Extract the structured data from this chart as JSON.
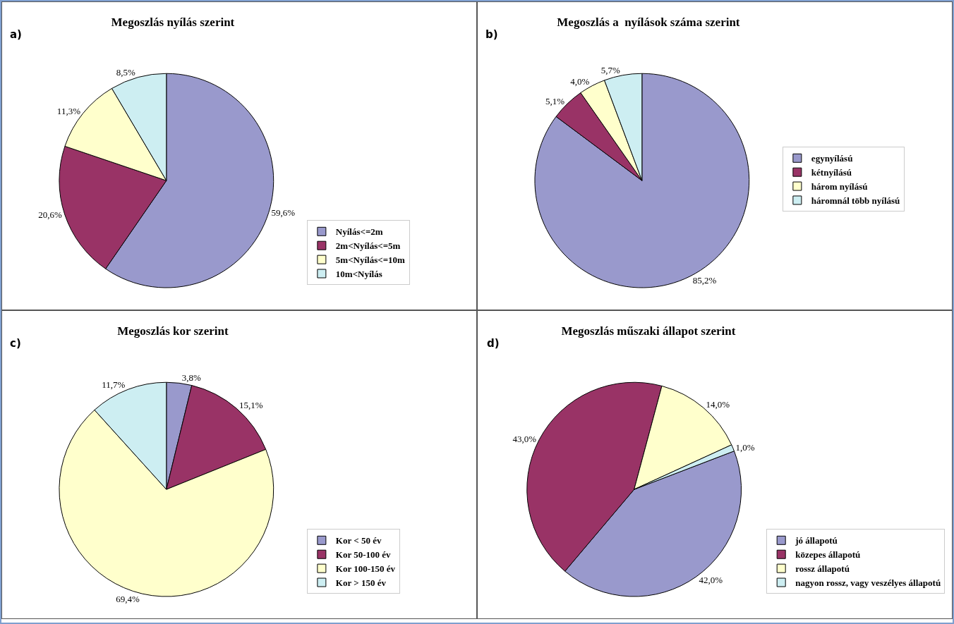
{
  "chart_data": [
    {
      "type": "pie",
      "title": "Megoszlás nyílás szerint",
      "annotations": [
        "a)"
      ],
      "categories": [
        "Nyílás<=2m",
        "2m<Nyílás<=5m",
        "5m<Nyílás<=10m",
        "10m<Nyílás"
      ],
      "values": [
        59.6,
        20.6,
        11.3,
        8.5
      ],
      "value_labels": [
        "59,6%",
        "20,6%",
        "11,3%",
        "8,5%"
      ],
      "colors": [
        "#9999cc",
        "#993366",
        "#ffffcc",
        "#cdeef2"
      ],
      "legend": "bottom right"
    },
    {
      "type": "pie",
      "title": "Megoszlás a  nyílások száma szerint",
      "annotations": [
        "b)"
      ],
      "categories": [
        "egynyílású",
        "kétnyílású",
        "három nyílású",
        "háromnál több nyílású"
      ],
      "values": [
        85.2,
        5.1,
        4.0,
        5.7
      ],
      "value_labels": [
        "85,2%",
        "5,1%",
        "4,0%",
        "5,7%"
      ],
      "colors": [
        "#9999cc",
        "#993366",
        "#ffffcc",
        "#cdeef2"
      ],
      "legend": "right"
    },
    {
      "type": "pie",
      "title": "Megoszlás kor szerint",
      "annotations": [
        "c)"
      ],
      "categories": [
        "Kor < 50 év",
        "Kor 50-100 év",
        "Kor 100-150 év",
        "Kor > 150 év"
      ],
      "values": [
        3.8,
        15.1,
        69.4,
        11.7
      ],
      "value_labels": [
        "3,8%",
        "15,1%",
        "69,4%",
        "11,7%"
      ],
      "colors": [
        "#9999cc",
        "#993366",
        "#ffffcc",
        "#cdeef2"
      ],
      "legend": "bottom right"
    },
    {
      "type": "pie",
      "title": "Megoszlás műszaki állapot szerint",
      "annotations": [
        "d)"
      ],
      "categories": [
        "jó állapotú",
        "közepes állapotú",
        "rossz állapotú",
        "nagyon rossz, vagy veszélyes állapotú"
      ],
      "values": [
        42.0,
        43.0,
        14.0,
        1.0
      ],
      "value_labels": [
        "42,0%",
        "43,0%",
        "14,0%",
        "1,0%"
      ],
      "colors": [
        "#9999cc",
        "#993366",
        "#ffffcc",
        "#cdeef2"
      ],
      "legend": "bottom right"
    }
  ]
}
